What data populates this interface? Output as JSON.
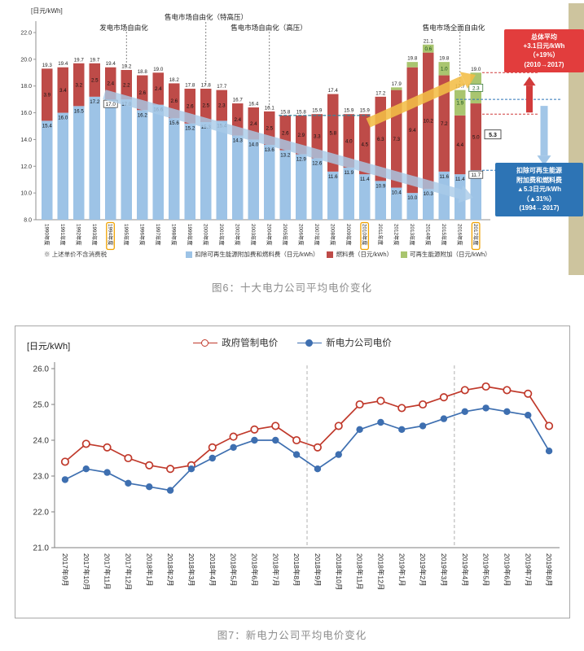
{
  "fig6": {
    "caption": "图6：十大电力公司平均电价变化",
    "unit_label": "[日元/kWh]",
    "footnote": "※ 上述单价不含消费税",
    "annotations": {
      "gen_liberalization": "发电市场自由化",
      "retail_extra_high": "售电市场自由化（特高压）",
      "retail_high": "售电市场自由化（高压）",
      "retail_full": "售电市场全面自由化"
    },
    "red_box": {
      "lines": [
        "总体平均",
        "+3.1日元/kWh",
        "（+19%）",
        "(2010→2017)"
      ]
    },
    "blue_box": {
      "lines": [
        "扣除可再生能源",
        "附加费和燃料费",
        "▲5.3日元/kWh",
        "（▲31%）",
        "(1994→2017)"
      ]
    },
    "boxed_values": {
      "v1994": "17.0",
      "v2017": "11.7",
      "drop": "5.3",
      "green2017": "2.3",
      "ref_line": "15.8"
    },
    "legend": [
      {
        "label": "扣除可再生能源附加费和燃料费（日元/kWh）",
        "color": "#9dc3e6"
      },
      {
        "label": "燃料费（日元/kWh）",
        "color": "#be4b48"
      },
      {
        "label": "可再生能源附加（日元/kWh）",
        "color": "#a9c56f"
      }
    ]
  },
  "fig7": {
    "caption": "图7：新电力公司平均电价变化",
    "unit_label": "[日元/kWh]",
    "legend": [
      {
        "label": "政府管制电价",
        "color": "#c0392b",
        "marker": "open"
      },
      {
        "label": "新电力公司电价",
        "color": "#3e6fb0",
        "marker": "filled"
      }
    ]
  },
  "chart_data": [
    {
      "id": "fig6",
      "type": "bar",
      "stacked": true,
      "title": "十大电力公司平均电价变化",
      "ylabel": "日元/kWh",
      "ylim": [
        8.0,
        22.0
      ],
      "ytick_step": 2.0,
      "grid": false,
      "categories": [
        "1990年度",
        "1991年度",
        "1992年度",
        "1993年度",
        "1994年度",
        "1995年度",
        "1996年度",
        "1997年度",
        "1998年度",
        "1999年度",
        "2000年度",
        "2001年度",
        "2002年度",
        "2003年度",
        "2004年度",
        "2005年度",
        "2006年度",
        "2007年度",
        "2008年度",
        "2009年度",
        "2010年度",
        "2011年度",
        "2012年度",
        "2013年度",
        "2014年度",
        "2015年度",
        "2016年度",
        "2017年度"
      ],
      "highlighted_categories": [
        "1994年度",
        "2010年度",
        "2017年度"
      ],
      "series": [
        {
          "name": "扣除可再生能源附加费和燃料费（日元/kWh）",
          "color": "#9dc3e6",
          "values": [
            15.4,
            16.0,
            16.5,
            17.2,
            17.0,
            17.0,
            16.2,
            16.6,
            15.6,
            15.2,
            15.3,
            15.4,
            14.3,
            14.0,
            13.6,
            13.2,
            12.9,
            12.6,
            11.6,
            11.9,
            11.4,
            10.9,
            10.4,
            10.0,
            10.3,
            11.6,
            11.4,
            11.7
          ]
        },
        {
          "name": "燃料费（日元/kWh）",
          "color": "#be4b48",
          "values": [
            3.9,
            3.4,
            3.2,
            2.5,
            2.4,
            2.2,
            2.6,
            2.4,
            2.6,
            2.6,
            2.5,
            2.3,
            2.4,
            2.4,
            2.5,
            2.6,
            2.9,
            3.3,
            5.8,
            4.0,
            4.5,
            6.3,
            7.3,
            9.4,
            10.2,
            7.2,
            4.4,
            5.0
          ]
        },
        {
          "name": "可再生能源附加（日元/kWh）",
          "color": "#a9c56f",
          "values": [
            0,
            0,
            0,
            0,
            0,
            0,
            0,
            0,
            0,
            0,
            0,
            0,
            0,
            0,
            0,
            0,
            0,
            0,
            0,
            0,
            0,
            0,
            0.2,
            0.4,
            0.6,
            1.0,
            1.9,
            2.3
          ]
        }
      ],
      "totals": [
        19.3,
        19.4,
        19.7,
        19.7,
        19.4,
        19.2,
        18.8,
        19.0,
        18.2,
        17.8,
        17.8,
        17.7,
        16.7,
        16.4,
        16.1,
        15.8,
        15.8,
        15.9,
        17.4,
        15.9,
        15.9,
        17.2,
        17.9,
        19.8,
        21.1,
        19.8,
        17.7,
        19.0
      ]
    },
    {
      "id": "fig7",
      "type": "line",
      "title": "新电力公司平均电价变化",
      "ylabel": "日元/kWh",
      "ylim": [
        21.0,
        26.0
      ],
      "ytick_step": 1.0,
      "grid": false,
      "legend_position": "top",
      "categories": [
        "2017年9月",
        "2017年10月",
        "2017年11月",
        "2017年12月",
        "2018年1月",
        "2018年2月",
        "2018年3月",
        "2018年4月",
        "2018年5月",
        "2018年6月",
        "2018年7月",
        "2018年8月",
        "2018年9月",
        "2018年10月",
        "2018年11月",
        "2018年12月",
        "2019年1月",
        "2019年2月",
        "2019年3月",
        "2019年4月",
        "2019年5月",
        "2019年6月",
        "2019年7月",
        "2019年8月"
      ],
      "series": [
        {
          "name": "政府管制电价",
          "color": "#c0392b",
          "marker": "open",
          "values": [
            23.4,
            23.9,
            23.8,
            23.5,
            23.3,
            23.2,
            23.3,
            23.8,
            24.1,
            24.3,
            24.4,
            24.0,
            23.8,
            24.4,
            25.0,
            25.1,
            24.9,
            25.0,
            25.2,
            25.4,
            25.5,
            25.4,
            25.3,
            24.4
          ]
        },
        {
          "name": "新电力公司电价",
          "color": "#3e6fb0",
          "marker": "filled",
          "values": [
            22.9,
            23.2,
            23.1,
            22.8,
            22.7,
            22.6,
            23.2,
            23.5,
            23.8,
            24.0,
            24.0,
            23.6,
            23.2,
            23.6,
            24.3,
            24.5,
            24.3,
            24.4,
            24.6,
            24.8,
            24.9,
            24.8,
            24.7,
            23.7
          ]
        }
      ],
      "dashed_vlines_after_index": [
        11,
        18
      ]
    }
  ]
}
